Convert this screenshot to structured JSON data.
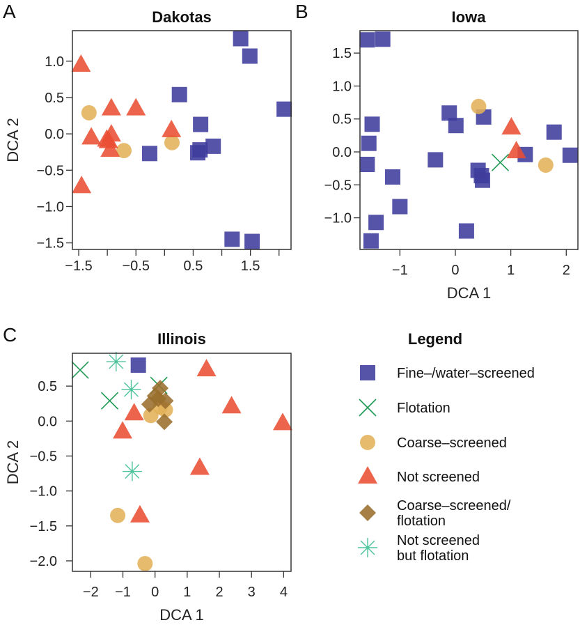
{
  "chart_data": [
    {
      "type": "scatter",
      "panel_letter": "A",
      "title": "Dakotas",
      "xlabel": "",
      "ylabel": "DCA 2",
      "xlim": [
        -1.61,
        2.21
      ],
      "ylim": [
        -1.59,
        1.42
      ],
      "x_ticks": [
        -1.5,
        -1,
        -0.5,
        0,
        0.5,
        1,
        1.5,
        2
      ],
      "x_tick_labels": [
        "-1.5",
        "-0.5",
        "0.5",
        "1.5"
      ],
      "y_ticks": [
        1.0,
        0.5,
        0.0,
        -0.5,
        -1.0,
        -1.5
      ],
      "y_tick_labels": [
        "1.0",
        "0.5",
        "0.0",
        "-0.5",
        "-1.0",
        "-1.5"
      ],
      "grid": false,
      "series": [
        {
          "category": "fine",
          "points": [
            [
              1.33,
              1.31
            ],
            [
              1.49,
              1.07
            ],
            [
              0.26,
              0.54
            ],
            [
              2.09,
              0.34
            ],
            [
              0.63,
              0.13
            ],
            [
              0.85,
              -0.17
            ],
            [
              0.58,
              -0.26
            ],
            [
              0.62,
              -0.22
            ],
            [
              -0.26,
              -0.27
            ],
            [
              1.18,
              -1.45
            ],
            [
              1.53,
              -1.48
            ]
          ]
        },
        {
          "category": "coarse",
          "points": [
            [
              -1.32,
              0.29
            ],
            [
              -0.71,
              -0.23
            ],
            [
              0.13,
              -0.12
            ]
          ]
        },
        {
          "category": "not",
          "points": [
            [
              -1.46,
              0.95
            ],
            [
              -0.93,
              0.35
            ],
            [
              -0.5,
              0.35
            ],
            [
              -1.28,
              -0.05
            ],
            [
              -0.93,
              -0.01
            ],
            [
              -1.01,
              -0.08
            ],
            [
              -0.98,
              -0.1
            ],
            [
              -0.95,
              -0.22
            ],
            [
              0.12,
              0.05
            ],
            [
              -1.45,
              -0.72
            ]
          ]
        }
      ]
    },
    {
      "type": "scatter",
      "panel_letter": "B",
      "title": "Iowa",
      "xlabel": "DCA 1",
      "ylabel": "",
      "xlim": [
        -1.72,
        2.21
      ],
      "ylim": [
        -1.48,
        1.84
      ],
      "x_ticks": [
        -1,
        0,
        1,
        2
      ],
      "x_tick_labels": [
        "-1",
        "0",
        "1",
        "2"
      ],
      "y_ticks": [
        1.5,
        1.0,
        0.5,
        0.0,
        -0.5,
        -1.0
      ],
      "y_tick_labels": [
        "1.5",
        "1.0",
        "0.5",
        "0.0",
        "-0.5",
        "-1.0"
      ],
      "grid": false,
      "series": [
        {
          "category": "fine",
          "points": [
            [
              -1.59,
              1.7
            ],
            [
              -1.31,
              1.71
            ],
            [
              -1.5,
              0.42
            ],
            [
              -1.56,
              0.13
            ],
            [
              -1.59,
              -0.19
            ],
            [
              -1.13,
              -0.38
            ],
            [
              -1.0,
              -0.83
            ],
            [
              -1.43,
              -1.07
            ],
            [
              -1.52,
              -1.35
            ],
            [
              -0.36,
              -0.12
            ],
            [
              -0.11,
              0.59
            ],
            [
              0.01,
              0.4
            ],
            [
              0.51,
              0.53
            ],
            [
              0.41,
              -0.28
            ],
            [
              0.47,
              -0.36
            ],
            [
              0.49,
              -0.43
            ],
            [
              0.2,
              -1.2
            ],
            [
              1.26,
              -0.04
            ],
            [
              1.78,
              0.3
            ],
            [
              2.07,
              -0.05
            ]
          ]
        },
        {
          "category": "flotation",
          "points": [
            [
              0.81,
              -0.16
            ]
          ]
        },
        {
          "category": "coarse",
          "points": [
            [
              0.42,
              0.69
            ],
            [
              1.63,
              -0.2
            ]
          ]
        },
        {
          "category": "not",
          "points": [
            [
              1.01,
              0.37
            ],
            [
              1.1,
              0.01
            ]
          ]
        }
      ]
    },
    {
      "type": "scatter",
      "panel_letter": "C",
      "title": "Illinois",
      "xlabel": "DCA 1",
      "ylabel": "DCA 2",
      "xlim": [
        -2.57,
        4.23
      ],
      "ylim": [
        -2.15,
        0.97
      ],
      "x_ticks": [
        -2,
        -1,
        0,
        1,
        2,
        3,
        4
      ],
      "x_tick_labels": [
        "-2",
        "-1",
        "0",
        "1",
        "2",
        "3",
        "4"
      ],
      "y_ticks": [
        0.5,
        0.0,
        -0.5,
        -1.0,
        -1.5,
        -2.0
      ],
      "y_tick_labels": [
        "0.5",
        "0.0",
        "-0.5",
        "-1.0",
        "-1.5",
        "-2.0"
      ],
      "grid": false,
      "series": [
        {
          "category": "fine",
          "points": [
            [
              -0.52,
              0.8
            ]
          ]
        },
        {
          "category": "flotation",
          "points": [
            [
              -2.33,
              0.73
            ],
            [
              -1.41,
              0.29
            ],
            [
              0.12,
              0.51
            ]
          ]
        },
        {
          "category": "coarse",
          "points": [
            [
              -0.13,
              0.08
            ],
            [
              0.32,
              0.16
            ],
            [
              0.16,
              0.2
            ],
            [
              -1.16,
              -1.35
            ],
            [
              -0.31,
              -2.04
            ]
          ]
        },
        {
          "category": "not",
          "points": [
            [
              1.6,
              0.74
            ],
            [
              2.38,
              0.21
            ],
            [
              3.97,
              -0.03
            ],
            [
              -0.65,
              0.11
            ],
            [
              -1.01,
              -0.15
            ],
            [
              1.39,
              -0.67
            ],
            [
              -0.47,
              -1.35
            ]
          ]
        },
        {
          "category": "coarse_flot",
          "points": [
            [
              0.16,
              0.47
            ],
            [
              0.0,
              0.36
            ],
            [
              -0.17,
              0.24
            ],
            [
              0.32,
              0.29
            ],
            [
              0.1,
              0.32
            ],
            [
              0.29,
              -0.01
            ]
          ]
        },
        {
          "category": "not_flot",
          "points": [
            [
              -1.21,
              0.85
            ],
            [
              -0.74,
              0.45
            ],
            [
              -0.71,
              -0.72
            ]
          ]
        }
      ]
    }
  ],
  "legend": {
    "title": "Legend",
    "items": [
      {
        "category": "fine",
        "marker": "square",
        "color": "#3f3c9c",
        "lines": [
          "Fine–/water–screened"
        ]
      },
      {
        "category": "flotation",
        "marker": "x",
        "color": "#1f9a55",
        "lines": [
          "Flotation"
        ]
      },
      {
        "category": "coarse",
        "marker": "circle",
        "color": "#e2b25a",
        "lines": [
          "Coarse–screened"
        ]
      },
      {
        "category": "not",
        "marker": "triangle",
        "color": "#eb4f33",
        "lines": [
          "Not screened"
        ]
      },
      {
        "category": "coarse_flot",
        "marker": "diamond",
        "color": "#9a6e2e",
        "lines": [
          "Coarse–screened/",
          "flotation"
        ]
      },
      {
        "category": "not_flot",
        "marker": "asterisk",
        "color": "#4cc39c",
        "lines": [
          "Not screened",
          "but flotation"
        ]
      }
    ]
  }
}
